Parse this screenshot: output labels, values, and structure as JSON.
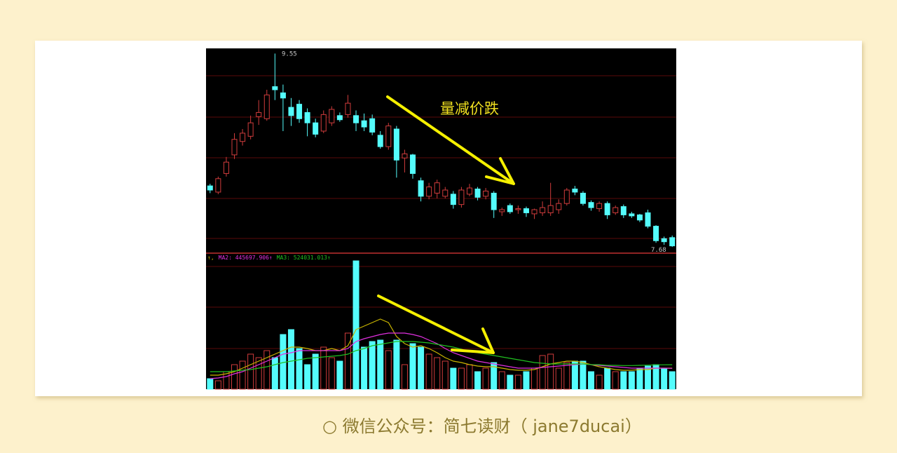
{
  "chart_data": [
    {
      "type": "candlestick",
      "annotation": "量减价跌",
      "high_label": 9.55,
      "low_label": 7.68,
      "up_color": "#d03c3c",
      "down_color": "#54fcfc",
      "ylim": [
        7.64,
        9.6
      ],
      "open": [
        8.27,
        8.21,
        8.39,
        8.57,
        8.7,
        8.75,
        8.94,
        8.92,
        9.23,
        9.17,
        9.03,
        9.06,
        8.98,
        8.88,
        8.8,
        8.88,
        8.95,
        8.96,
        8.95,
        8.9,
        8.92,
        8.76,
        8.65,
        8.82,
        8.54,
        8.57,
        8.32,
        8.17,
        8.2,
        8.17,
        8.19,
        8.09,
        8.19,
        8.24,
        8.17,
        8.2,
        8.02,
        8.08,
        8.04,
        8.05,
        8.0,
        8.01,
        8.01,
        8.04,
        8.1,
        8.24,
        8.2,
        8.11,
        8.05,
        8.1,
        8.01,
        8.07,
        8.0,
        7.99,
        8.01,
        7.88,
        7.76,
        7.77
      ],
      "high": [
        8.29,
        8.36,
        8.55,
        8.78,
        8.82,
        8.95,
        9.1,
        9.2,
        9.55,
        9.25,
        9.12,
        9.1,
        9.02,
        8.92,
        9.0,
        9.04,
        8.98,
        9.15,
        9.0,
        8.97,
        8.96,
        8.8,
        8.88,
        8.85,
        8.62,
        8.58,
        8.35,
        8.3,
        8.33,
        8.26,
        8.22,
        8.26,
        8.29,
        8.26,
        8.25,
        8.22,
        8.06,
        8.1,
        8.08,
        8.07,
        8.05,
        8.12,
        8.3,
        8.14,
        8.25,
        8.27,
        8.22,
        8.13,
        8.12,
        8.12,
        8.08,
        8.09,
        8.02,
        8.0,
        8.04,
        7.89,
        7.78,
        7.79
      ],
      "low": [
        8.2,
        8.19,
        8.36,
        8.53,
        8.66,
        8.72,
        8.86,
        8.9,
        9.1,
        8.8,
        8.85,
        8.88,
        8.75,
        8.74,
        8.78,
        8.85,
        8.89,
        8.93,
        8.8,
        8.8,
        8.76,
        8.63,
        8.62,
        8.35,
        8.4,
        8.34,
        8.12,
        8.14,
        8.15,
        8.15,
        8.05,
        8.06,
        8.17,
        8.13,
        8.14,
        7.96,
        7.98,
        8.0,
        8.0,
        7.97,
        7.95,
        7.98,
        7.98,
        8.0,
        8.08,
        8.18,
        8.08,
        8.03,
        8.02,
        7.95,
        7.99,
        7.96,
        7.96,
        7.92,
        7.86,
        7.72,
        7.7,
        7.68
      ],
      "close": [
        8.23,
        8.34,
        8.5,
        8.72,
        8.78,
        8.88,
        8.98,
        9.15,
        9.2,
        9.12,
        8.95,
        8.92,
        8.88,
        8.77,
        8.96,
        9.01,
        8.91,
        9.07,
        8.88,
        8.84,
        8.79,
        8.65,
        8.85,
        8.52,
        8.58,
        8.39,
        8.17,
        8.26,
        8.3,
        8.23,
        8.09,
        8.23,
        8.25,
        8.16,
        8.22,
        8.04,
        8.04,
        8.02,
        8.05,
        8.01,
        8.04,
        8.06,
        8.08,
        8.1,
        8.23,
        8.21,
        8.1,
        8.06,
        8.1,
        7.99,
        8.06,
        7.99,
        7.98,
        7.94,
        7.88,
        7.74,
        7.73,
        7.69
      ]
    },
    {
      "type": "bar",
      "ylim": [
        0,
        2850000
      ],
      "values": [
        225000,
        180000,
        375000,
        525000,
        600000,
        750000,
        675000,
        825000,
        675000,
        1170000,
        1275000,
        870000,
        525000,
        750000,
        900000,
        675000,
        600000,
        1200000,
        2745000,
        900000,
        1020000,
        1050000,
        825000,
        1050000,
        525000,
        975000,
        900000,
        750000,
        675000,
        600000,
        450000,
        450000,
        525000,
        375000,
        450000,
        570000,
        375000,
        300000,
        300000,
        375000,
        450000,
        720000,
        750000,
        450000,
        570000,
        600000,
        600000,
        375000,
        300000,
        450000,
        375000,
        375000,
        375000,
        450000,
        495000,
        525000,
        450000,
        375000
      ],
      "series": [
        {
          "name": "↑,",
          "color": "#c8b400",
          "values": [
            300000,
            300000,
            330000,
            375000,
            450000,
            525000,
            600000,
            675000,
            750000,
            825000,
            900000,
            900000,
            870000,
            825000,
            825000,
            870000,
            825000,
            930000,
            1275000,
            1350000,
            1425000,
            1500000,
            1425000,
            1125000,
            975000,
            900000,
            930000,
            870000,
            780000,
            675000,
            600000,
            570000,
            525000,
            495000,
            480000,
            480000,
            450000,
            420000,
            405000,
            405000,
            420000,
            480000,
            540000,
            570000,
            600000,
            600000,
            570000,
            525000,
            480000,
            450000,
            420000,
            405000,
            405000,
            420000,
            420000,
            450000,
            450000,
            450000
          ]
        },
        {
          "name": "MA2: 445697.906↑",
          "color": "#e030e0",
          "values": [
            225000,
            240000,
            270000,
            330000,
            375000,
            450000,
            525000,
            600000,
            675000,
            750000,
            780000,
            825000,
            825000,
            825000,
            825000,
            825000,
            825000,
            870000,
            1020000,
            1080000,
            1125000,
            1170000,
            1200000,
            1200000,
            1200000,
            1170000,
            1125000,
            1050000,
            975000,
            870000,
            780000,
            720000,
            660000,
            600000,
            570000,
            540000,
            510000,
            480000,
            450000,
            450000,
            450000,
            465000,
            480000,
            495000,
            510000,
            525000,
            540000,
            525000,
            510000,
            495000,
            480000,
            465000,
            450000,
            450000,
            450000,
            450000,
            450000,
            445697.906
          ]
        },
        {
          "name": "MA3: 524031.013↑",
          "color": "#20c020",
          "values": [
            375000,
            375000,
            375000,
            390000,
            405000,
            420000,
            450000,
            480000,
            525000,
            570000,
            600000,
            630000,
            660000,
            675000,
            690000,
            705000,
            720000,
            750000,
            825000,
            870000,
            930000,
            960000,
            990000,
            1020000,
            1020000,
            1020000,
            1005000,
            990000,
            960000,
            930000,
            900000,
            855000,
            810000,
            780000,
            750000,
            720000,
            690000,
            660000,
            630000,
            600000,
            570000,
            555000,
            540000,
            540000,
            540000,
            540000,
            540000,
            525000,
            525000,
            510000,
            510000,
            505000,
            505000,
            510000,
            515000,
            520000,
            522000,
            524031.013
          ]
        }
      ]
    }
  ],
  "footer": "○  微信公众号：简七读财（ jane7ducai）"
}
